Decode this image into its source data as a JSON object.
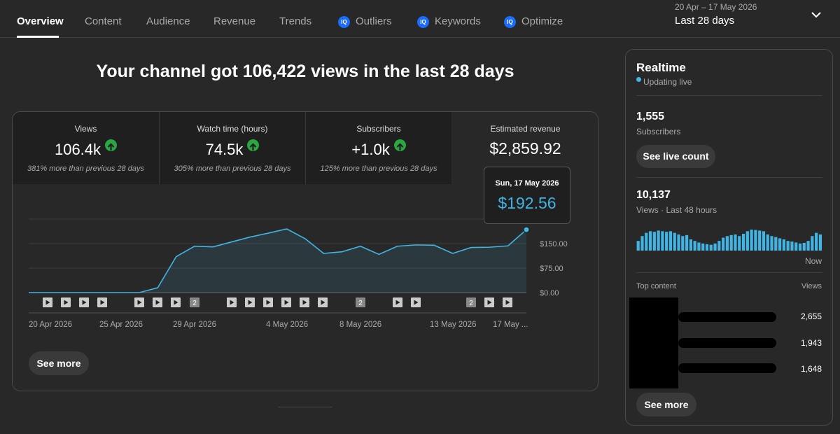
{
  "tabs": [
    {
      "label": "Overview",
      "active": true
    },
    {
      "label": "Content"
    },
    {
      "label": "Audience"
    },
    {
      "label": "Revenue"
    },
    {
      "label": "Trends"
    },
    {
      "label": "Outliers",
      "badge": "IQ"
    },
    {
      "label": "Keywords",
      "badge": "IQ"
    },
    {
      "label": "Optimize",
      "badge": "IQ"
    }
  ],
  "date_range": {
    "range": "20 Apr – 17 May 2026",
    "label": "Last 28 days"
  },
  "headline": "Your channel got 106,422 views in the last 28 days",
  "metrics": [
    {
      "label": "Views",
      "value": "106.4k",
      "comparison": "381% more than previous 28 days",
      "trend": "up"
    },
    {
      "label": "Watch time (hours)",
      "value": "74.5k",
      "comparison": "305% more than previous 28 days",
      "trend": "up"
    },
    {
      "label": "Subscribers",
      "value": "+1.0k",
      "comparison": "125% more than previous 28 days",
      "trend": "up"
    },
    {
      "label": "Estimated revenue",
      "value": "$2,859.92",
      "selected": true
    }
  ],
  "tooltip": {
    "date": "Sun, 17 May 2026",
    "value": "$192.56"
  },
  "chart_data": {
    "type": "area",
    "metric": "Estimated revenue",
    "x": [
      "20 Apr",
      "21 Apr",
      "22 Apr",
      "23 Apr",
      "24 Apr",
      "25 Apr",
      "26 Apr",
      "27 Apr",
      "28 Apr",
      "29 Apr",
      "30 Apr",
      "1 May",
      "2 May",
      "3 May",
      "4 May",
      "5 May",
      "6 May",
      "7 May",
      "8 May",
      "9 May",
      "10 May",
      "11 May",
      "12 May",
      "13 May",
      "14 May",
      "15 May",
      "16 May",
      "17 May"
    ],
    "values": [
      0,
      0,
      0,
      0,
      0,
      0,
      0,
      15,
      110,
      142,
      140,
      155,
      170,
      182,
      195,
      165,
      120,
      125,
      142,
      117,
      142,
      146,
      145,
      120,
      138,
      139,
      143,
      192.56
    ],
    "y_ticks": [
      "$0.00",
      "$75.00",
      "$150.00"
    ],
    "ylim": [
      0,
      225
    ],
    "x_tick_labels": [
      "20 Apr 2026",
      "25 Apr 2026",
      "29 Apr 2026",
      "4 May 2026",
      "8 May 2026",
      "13 May 2026",
      "17 May ..."
    ],
    "color": "#41b4e4",
    "markers": [
      "play",
      "play",
      "play",
      "play",
      "play",
      "play",
      "play",
      "2",
      "play",
      "play",
      "play",
      "play",
      "play",
      "play",
      "2",
      "play",
      "play",
      "2",
      "play",
      "play"
    ]
  },
  "see_more_main": "See more",
  "realtime": {
    "title": "Realtime",
    "status": "Updating live",
    "subscribers_value": "1,555",
    "subscribers_label": "Subscribers",
    "live_count_button": "See live count",
    "views_value": "10,137",
    "views_label": "Views · Last 48 hours",
    "now_label": "Now",
    "bars": [
      30,
      45,
      55,
      60,
      58,
      62,
      60,
      58,
      60,
      55,
      50,
      45,
      48,
      35,
      30,
      25,
      22,
      20,
      18,
      22,
      30,
      40,
      45,
      48,
      50,
      45,
      52,
      60,
      65,
      64,
      62,
      60,
      50,
      45,
      42,
      38,
      35,
      30,
      28,
      25,
      22,
      24,
      30,
      45,
      55,
      50
    ],
    "top_content_label": "Top content",
    "views_col_label": "Views",
    "top_content": [
      {
        "views": "2,655"
      },
      {
        "views": "1,943"
      },
      {
        "views": "1,648"
      }
    ],
    "see_more": "See more"
  }
}
